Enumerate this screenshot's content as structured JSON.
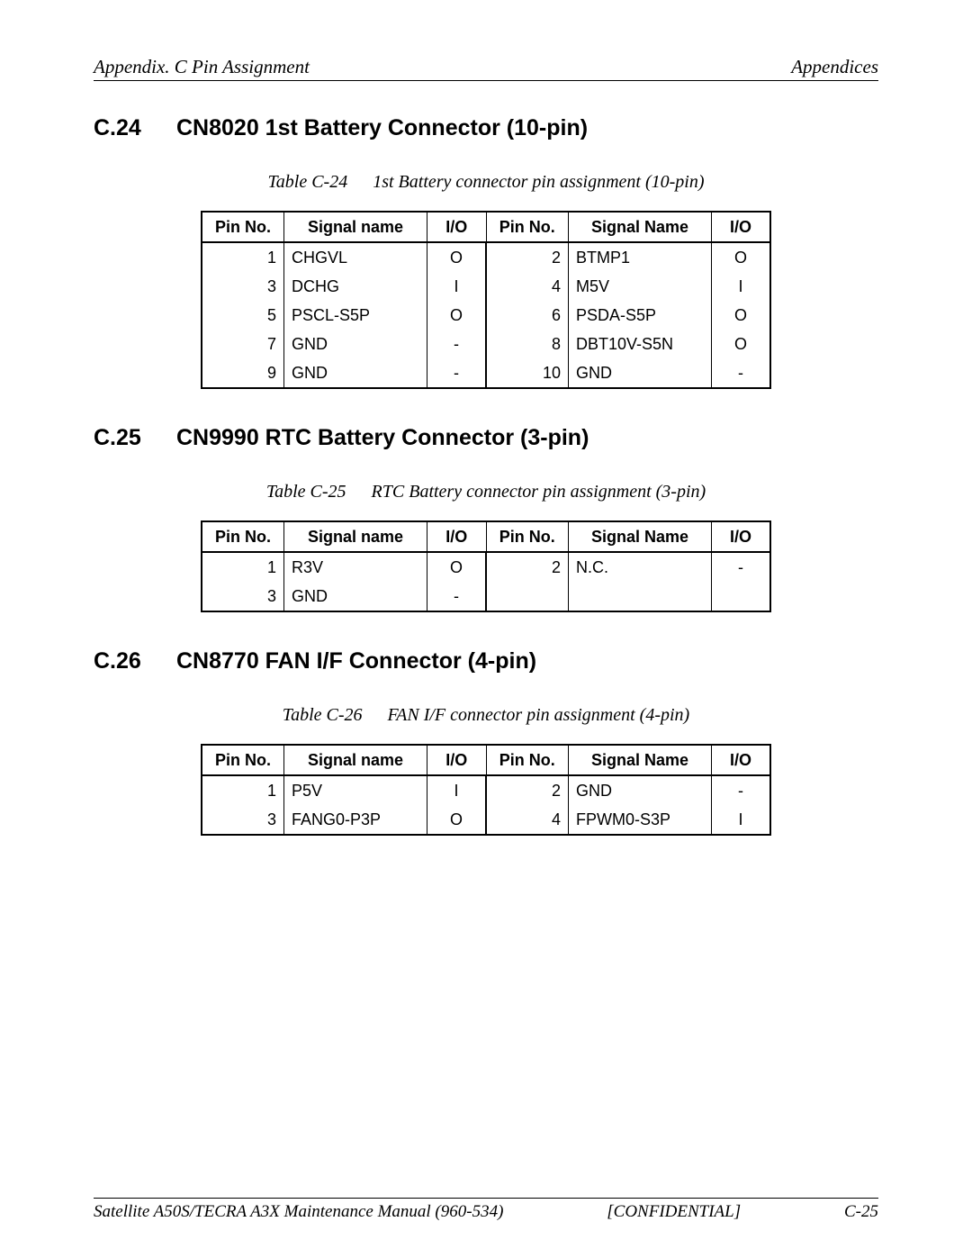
{
  "header": {
    "left": "Appendix. C  Pin Assignment",
    "right": "Appendices"
  },
  "sections": [
    {
      "num": "C.24",
      "title": "CN8020 1st Battery Connector (10-pin)",
      "caption_label": "Table C-24",
      "caption_text": "1st Battery connector pin assignment (10-pin)",
      "columns": [
        "Pin No.",
        "Signal name",
        "I/O",
        "Pin No.",
        "Signal Name",
        "I/O"
      ],
      "rows": [
        [
          "1",
          "CHGVL",
          "O",
          "2",
          "BTMP1",
          "O"
        ],
        [
          "3",
          "DCHG",
          "I",
          "4",
          "M5V",
          "I"
        ],
        [
          "5",
          "PSCL-S5P",
          "O",
          "6",
          "PSDA-S5P",
          "O"
        ],
        [
          "7",
          "GND",
          "-",
          "8",
          "DBT10V-S5N",
          "O"
        ],
        [
          "9",
          "GND",
          "-",
          "10",
          "GND",
          "-"
        ]
      ]
    },
    {
      "num": "C.25",
      "title": "CN9990 RTC Battery Connector (3-pin)",
      "caption_label": "Table C-25",
      "caption_text": "RTC Battery connector pin assignment (3-pin)",
      "columns": [
        "Pin No.",
        "Signal name",
        "I/O",
        "Pin No.",
        "Signal Name",
        "I/O"
      ],
      "rows": [
        [
          "1",
          "R3V",
          "O",
          "2",
          "N.C.",
          "-"
        ],
        [
          "3",
          "GND",
          "-",
          "",
          "",
          ""
        ]
      ]
    },
    {
      "num": "C.26",
      "title": "CN8770 FAN I/F Connector (4-pin)",
      "caption_label": "Table C-26",
      "caption_text": "FAN I/F connector pin assignment (4-pin)",
      "columns": [
        "Pin No.",
        "Signal name",
        "I/O",
        "Pin No.",
        "Signal Name",
        "I/O"
      ],
      "rows": [
        [
          "1",
          "P5V",
          "I",
          "2",
          "GND",
          "-"
        ],
        [
          "3",
          "FANG0-P3P",
          "O",
          "4",
          "FPWM0-S3P",
          "I"
        ]
      ]
    }
  ],
  "footer": {
    "left": "Satellite A50S/TECRA A3X  Maintenance Manual (960-534)",
    "center": "[CONFIDENTIAL]",
    "right": "C-25"
  }
}
